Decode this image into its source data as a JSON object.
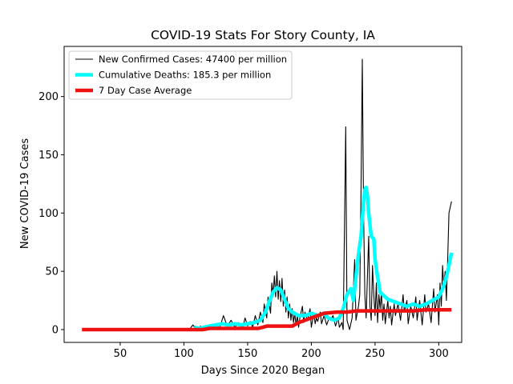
{
  "chart_data": {
    "type": "line",
    "title": "COVID-19 Stats For Story County, IA",
    "xlabel": "Days Since 2020 Began",
    "ylabel": "New COVID-19 Cases",
    "xlim": [
      6,
      318
    ],
    "ylim": [
      -11,
      243
    ],
    "xticks": [
      50,
      100,
      150,
      200,
      250,
      300
    ],
    "yticks": [
      0,
      50,
      100,
      150,
      200
    ],
    "grid": false,
    "legend_position": "top-left",
    "series": [
      {
        "name": "New Confirmed Cases: 47400 per million",
        "color": "#000000",
        "points": [
          [
            100,
            0
          ],
          [
            105,
            1
          ],
          [
            107,
            4
          ],
          [
            110,
            0
          ],
          [
            113,
            3
          ],
          [
            116,
            0
          ],
          [
            119,
            2
          ],
          [
            122,
            0
          ],
          [
            125,
            5
          ],
          [
            128,
            1
          ],
          [
            131,
            12
          ],
          [
            134,
            3
          ],
          [
            137,
            8
          ],
          [
            140,
            2
          ],
          [
            143,
            6
          ],
          [
            146,
            1
          ],
          [
            148,
            10
          ],
          [
            150,
            3
          ],
          [
            152,
            7
          ],
          [
            154,
            2
          ],
          [
            156,
            12
          ],
          [
            158,
            4
          ],
          [
            160,
            15
          ],
          [
            162,
            6
          ],
          [
            163,
            22
          ],
          [
            165,
            10
          ],
          [
            166,
            28
          ],
          [
            168,
            14
          ],
          [
            169,
            40
          ],
          [
            170,
            30
          ],
          [
            171,
            46
          ],
          [
            172,
            28
          ],
          [
            173,
            50
          ],
          [
            174,
            26
          ],
          [
            175,
            42
          ],
          [
            176,
            24
          ],
          [
            177,
            44
          ],
          [
            178,
            20
          ],
          [
            179,
            34
          ],
          [
            180,
            15
          ],
          [
            181,
            28
          ],
          [
            182,
            10
          ],
          [
            183,
            22
          ],
          [
            184,
            8
          ],
          [
            185,
            18
          ],
          [
            186,
            6
          ],
          [
            187,
            14
          ],
          [
            188,
            4
          ],
          [
            189,
            12
          ],
          [
            190,
            2
          ],
          [
            191,
            10
          ],
          [
            193,
            20
          ],
          [
            194,
            6
          ],
          [
            195,
            15
          ],
          [
            197,
            8
          ],
          [
            199,
            18
          ],
          [
            200,
            2
          ],
          [
            202,
            14
          ],
          [
            203,
            5
          ],
          [
            204,
            10
          ],
          [
            205,
            7
          ],
          [
            207,
            15
          ],
          [
            208,
            5
          ],
          [
            210,
            12
          ],
          [
            212,
            4
          ],
          [
            214,
            10
          ],
          [
            215,
            8
          ],
          [
            217,
            12
          ],
          [
            219,
            3
          ],
          [
            221,
            10
          ],
          [
            222,
            2
          ],
          [
            224,
            6
          ],
          [
            225,
            0
          ],
          [
            227,
            174
          ],
          [
            228,
            8
          ],
          [
            230,
            0
          ],
          [
            232,
            10
          ],
          [
            234,
            60
          ],
          [
            235,
            8
          ],
          [
            237,
            20
          ],
          [
            238,
            30
          ],
          [
            239,
            120
          ],
          [
            240,
            232
          ],
          [
            241,
            100
          ],
          [
            242,
            30
          ],
          [
            243,
            10
          ],
          [
            245,
            80
          ],
          [
            246,
            20
          ],
          [
            247,
            8
          ],
          [
            248,
            55
          ],
          [
            249,
            30
          ],
          [
            250,
            12
          ],
          [
            251,
            40
          ],
          [
            252,
            6
          ],
          [
            253,
            30
          ],
          [
            254,
            18
          ],
          [
            255,
            32
          ],
          [
            256,
            8
          ],
          [
            257,
            22
          ],
          [
            258,
            5
          ],
          [
            260,
            25
          ],
          [
            261,
            10
          ],
          [
            262,
            20
          ],
          [
            263,
            4
          ],
          [
            265,
            22
          ],
          [
            266,
            12
          ],
          [
            268,
            22
          ],
          [
            270,
            8
          ],
          [
            272,
            30
          ],
          [
            273,
            15
          ],
          [
            275,
            25
          ],
          [
            276,
            5
          ],
          [
            278,
            20
          ],
          [
            280,
            10
          ],
          [
            282,
            28
          ],
          [
            283,
            8
          ],
          [
            285,
            25
          ],
          [
            287,
            4
          ],
          [
            289,
            30
          ],
          [
            290,
            15
          ],
          [
            292,
            22
          ],
          [
            294,
            6
          ],
          [
            296,
            35
          ],
          [
            297,
            15
          ],
          [
            299,
            30
          ],
          [
            300,
            4
          ],
          [
            301,
            40
          ],
          [
            302,
            20
          ],
          [
            303,
            55
          ],
          [
            304,
            35
          ],
          [
            305,
            50
          ],
          [
            306,
            25
          ],
          [
            307,
            60
          ],
          [
            308,
            100
          ],
          [
            310,
            110
          ]
        ]
      },
      {
        "name": "Cumulative Deaths: 185.3 per million",
        "color": "#00ffff",
        "points": [
          [
            108,
            2
          ],
          [
            112,
            1
          ],
          [
            116,
            2
          ],
          [
            120,
            3
          ],
          [
            125,
            4
          ],
          [
            130,
            5
          ],
          [
            135,
            4
          ],
          [
            140,
            5
          ],
          [
            145,
            4
          ],
          [
            150,
            5
          ],
          [
            155,
            6
          ],
          [
            160,
            8
          ],
          [
            164,
            15
          ],
          [
            167,
            24
          ],
          [
            170,
            32
          ],
          [
            173,
            36
          ],
          [
            176,
            34
          ],
          [
            179,
            26
          ],
          [
            182,
            18
          ],
          [
            185,
            15
          ],
          [
            190,
            12
          ],
          [
            195,
            12
          ],
          [
            200,
            14
          ],
          [
            205,
            12
          ],
          [
            210,
            14
          ],
          [
            213,
            10
          ],
          [
            218,
            8
          ],
          [
            222,
            10
          ],
          [
            225,
            18
          ],
          [
            228,
            30
          ],
          [
            231,
            35
          ],
          [
            233,
            25
          ],
          [
            235,
            45
          ],
          [
            237,
            65
          ],
          [
            239,
            80
          ],
          [
            240,
            95
          ],
          [
            241,
            110
          ],
          [
            242,
            120
          ],
          [
            243,
            122
          ],
          [
            244,
            115
          ],
          [
            245,
            100
          ],
          [
            246,
            90
          ],
          [
            247,
            80
          ],
          [
            249,
            78
          ],
          [
            250,
            60
          ],
          [
            252,
            45
          ],
          [
            254,
            32
          ],
          [
            256,
            30
          ],
          [
            260,
            26
          ],
          [
            265,
            24
          ],
          [
            270,
            22
          ],
          [
            275,
            20
          ],
          [
            280,
            22
          ],
          [
            285,
            20
          ],
          [
            290,
            22
          ],
          [
            295,
            25
          ],
          [
            300,
            28
          ],
          [
            303,
            35
          ],
          [
            306,
            45
          ],
          [
            308,
            55
          ],
          [
            310,
            66
          ]
        ]
      },
      {
        "name": "7 Day Case Average",
        "color": "#ee1111",
        "points": [
          [
            20,
            0
          ],
          [
            115,
            0
          ],
          [
            120,
            1
          ],
          [
            158,
            1
          ],
          [
            162,
            2
          ],
          [
            165,
            3
          ],
          [
            185,
            3
          ],
          [
            190,
            6
          ],
          [
            195,
            8
          ],
          [
            200,
            10
          ],
          [
            205,
            12
          ],
          [
            210,
            14
          ],
          [
            220,
            15
          ],
          [
            228,
            15
          ],
          [
            235,
            16
          ],
          [
            280,
            16
          ],
          [
            290,
            17
          ],
          [
            310,
            17
          ]
        ]
      }
    ]
  }
}
